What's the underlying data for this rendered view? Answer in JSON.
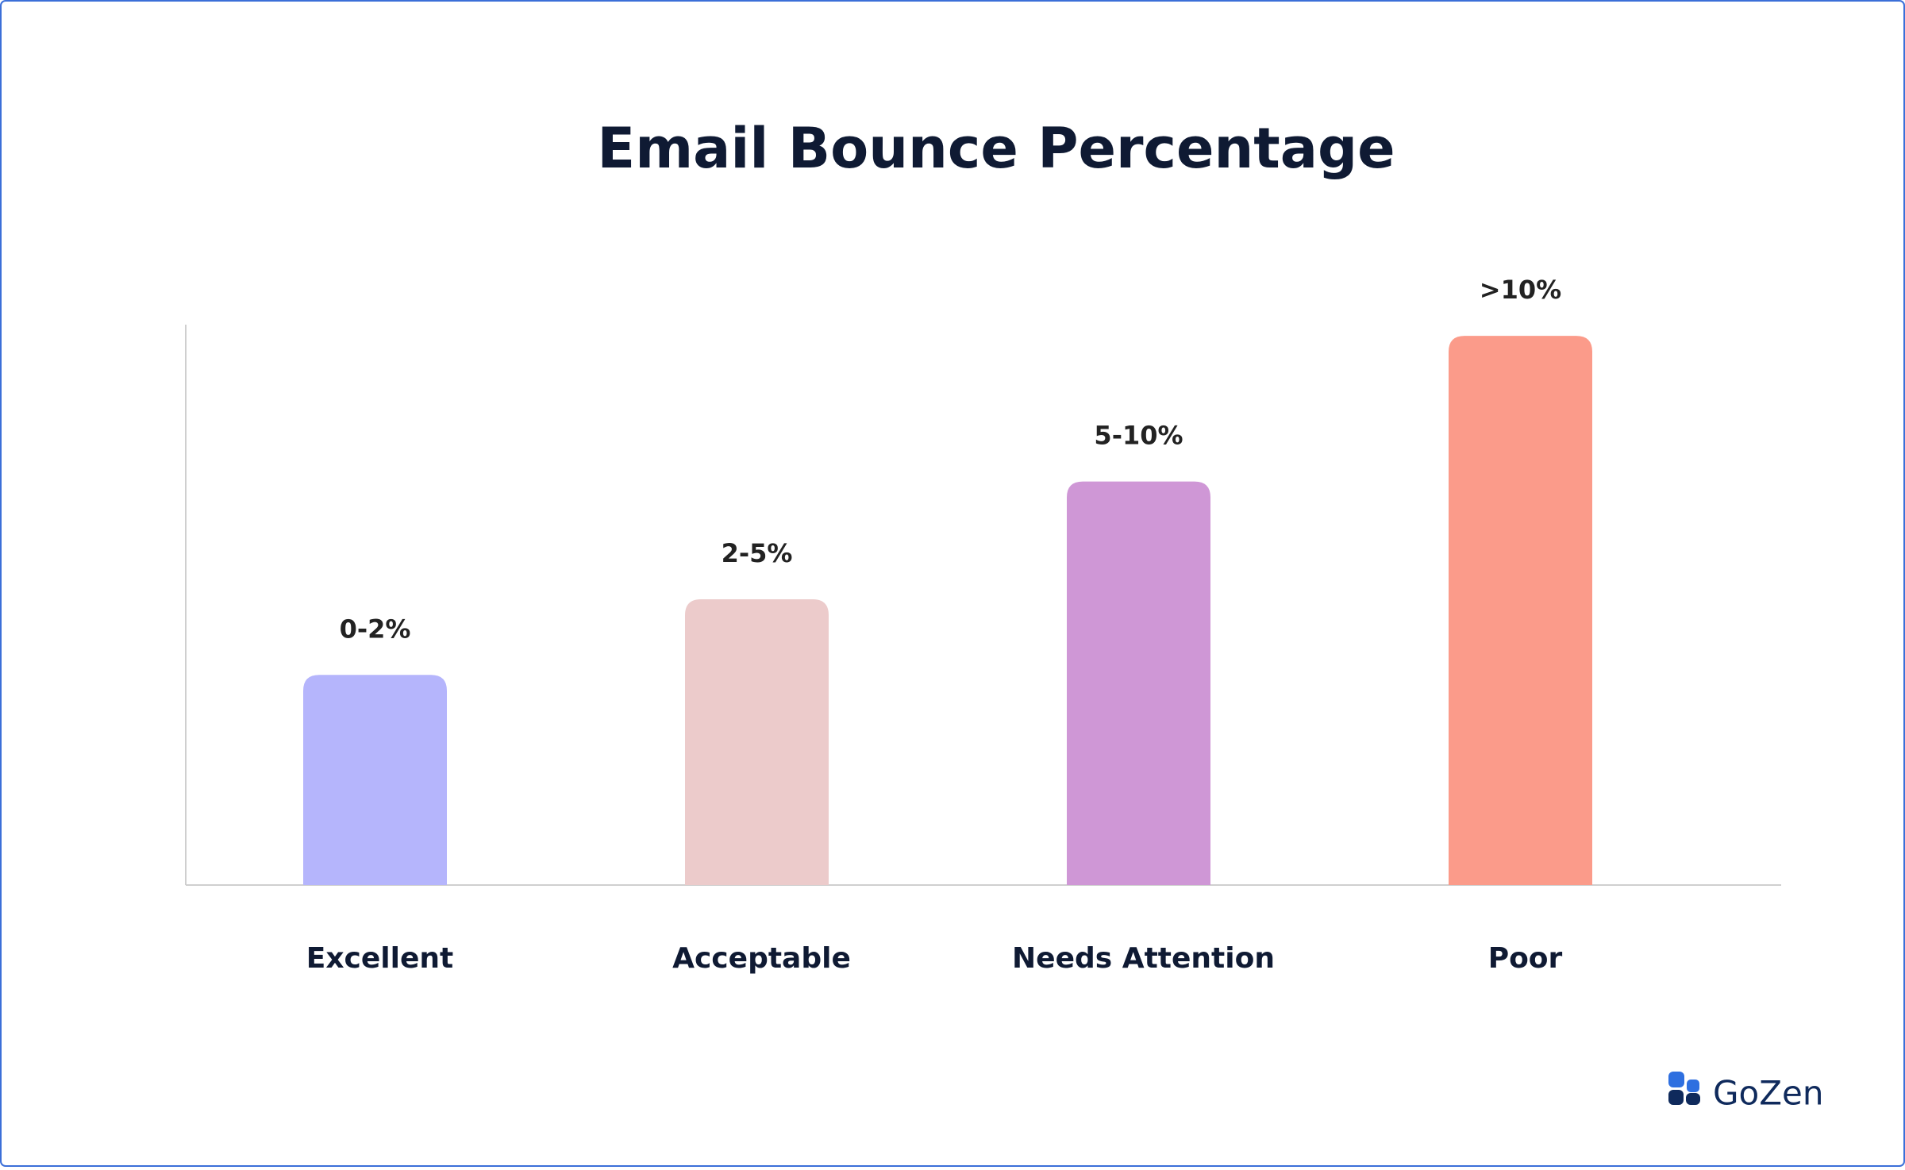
{
  "chart_data": {
    "type": "bar",
    "title": "Email Bounce Percentage",
    "categories": [
      "Excellent",
      "Acceptable",
      "Needs Attention",
      "Poor"
    ],
    "values": [
      37.5,
      51,
      72,
      98
    ],
    "bar_labels": [
      "0-2%",
      "2-5%",
      "5-10%",
      ">10%"
    ],
    "colors": [
      "#b5b5fc",
      "#eccbcb",
      "#cf97d6",
      "#fb9b8a"
    ],
    "ylim": [
      0,
      100
    ]
  },
  "brand": "GoZen"
}
